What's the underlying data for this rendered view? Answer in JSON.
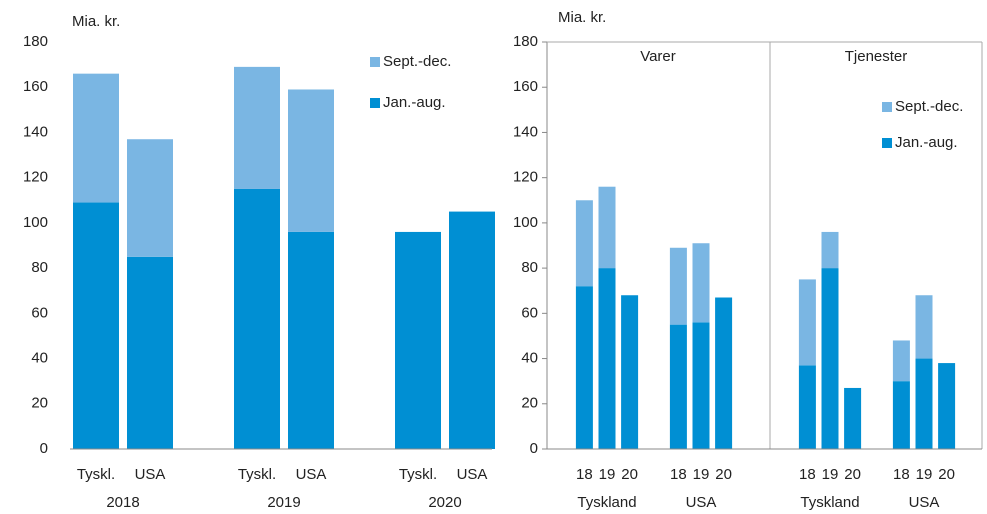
{
  "chart_data": [
    {
      "type": "bar",
      "stacked": true,
      "y_label": "Mia. kr.",
      "categories": [
        "Tyskl.",
        "USA",
        "Tyskl.",
        "USA",
        "Tyskl.",
        "USA"
      ],
      "groups": [
        "2018",
        "2019",
        "2020"
      ],
      "ylim": [
        0,
        180
      ],
      "yticks": [
        0,
        20,
        40,
        60,
        80,
        100,
        120,
        140,
        160,
        180
      ],
      "series": [
        {
          "name": "Jan.-aug.",
          "color": "#008fd3",
          "values": [
            109,
            85,
            115,
            96,
            96,
            105
          ]
        },
        {
          "name": "Sept.-dec.",
          "color": "#7ab6e3",
          "values": [
            57,
            52,
            54,
            63,
            null,
            null
          ]
        }
      ]
    },
    {
      "type": "bar",
      "stacked": true,
      "y_label": "Mia. kr.",
      "panels": [
        "Varer",
        "Tjenester"
      ],
      "groups": [
        "Tyskland",
        "USA",
        "Tyskland",
        "USA"
      ],
      "categories": [
        "18",
        "19",
        "20",
        "18",
        "19",
        "20",
        "18",
        "19",
        "20",
        "18",
        "19",
        "20"
      ],
      "ylim": [
        0,
        180
      ],
      "yticks": [
        0,
        20,
        40,
        60,
        80,
        100,
        120,
        140,
        160,
        180
      ],
      "series": [
        {
          "name": "Jan.-aug.",
          "color": "#008fd3",
          "values": [
            72,
            80,
            68,
            55,
            56,
            67,
            37,
            80,
            27,
            30,
            40,
            38
          ]
        },
        {
          "name": "Sept.-dec.",
          "color": "#7ab6e3",
          "values": [
            38,
            36,
            null,
            34,
            35,
            null,
            38,
            16,
            null,
            18,
            28,
            null
          ]
        }
      ]
    }
  ]
}
